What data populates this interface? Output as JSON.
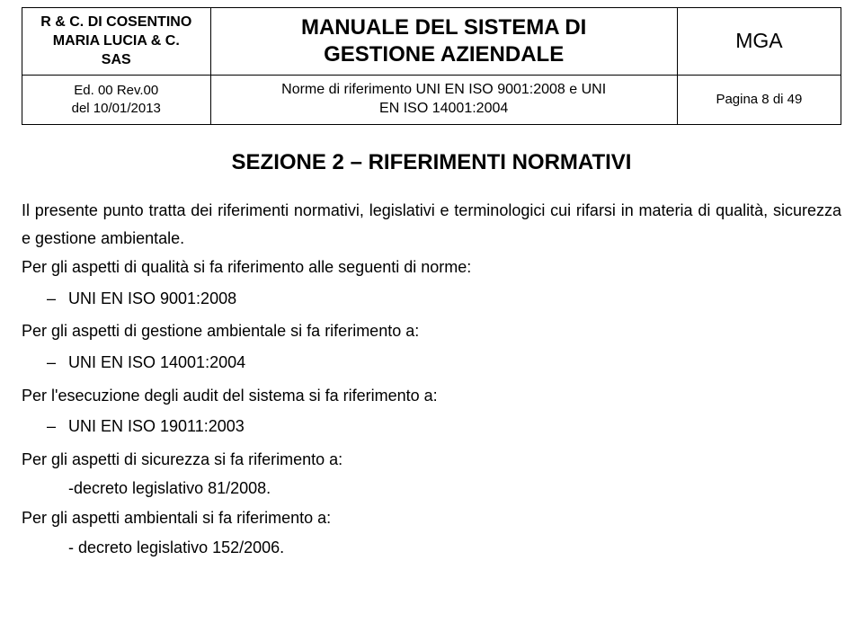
{
  "header": {
    "company_line1": "R & C. DI COSENTINO",
    "company_line2": "MARIA LUCIA & C.",
    "company_line3": "SAS",
    "edition_line1": "Ed. 00 Rev.00",
    "edition_line2": "del 10/01/2013",
    "title_line1": "MANUALE DEL SISTEMA DI",
    "title_line2": "GESTIONE AZIENDALE",
    "norms_line1": "Norme di riferimento UNI EN ISO 9001:2008 e UNI",
    "norms_line2": "EN ISO 14001:2004",
    "code": "MGA",
    "page": "Pagina 8 di 49"
  },
  "section": {
    "title": "SEZIONE 2 – RIFERIMENTI NORMATIVI"
  },
  "body": {
    "p1": "Il presente punto tratta dei riferimenti normativi, legislativi e terminologici cui rifarsi in materia di qualità, sicurezza e gestione ambientale.",
    "p2": "Per gli aspetti di qualità si fa riferimento alle seguenti di norme:",
    "li1": "UNI EN ISO 9001:2008",
    "p3": "Per gli aspetti di gestione ambientale si fa riferimento a:",
    "li2": "UNI EN ISO 14001:2004",
    "p4": "Per l'esecuzione degli audit del sistema si fa riferimento a:",
    "li3": "UNI EN ISO 19011:2003",
    "p5": "Per gli aspetti di sicurezza si fa riferimento a:",
    "p6": "-decreto legislativo 81/2008.",
    "p7": "Per gli aspetti ambientali si fa riferimento a:",
    "p8": "-    decreto legislativo 152/2006."
  }
}
